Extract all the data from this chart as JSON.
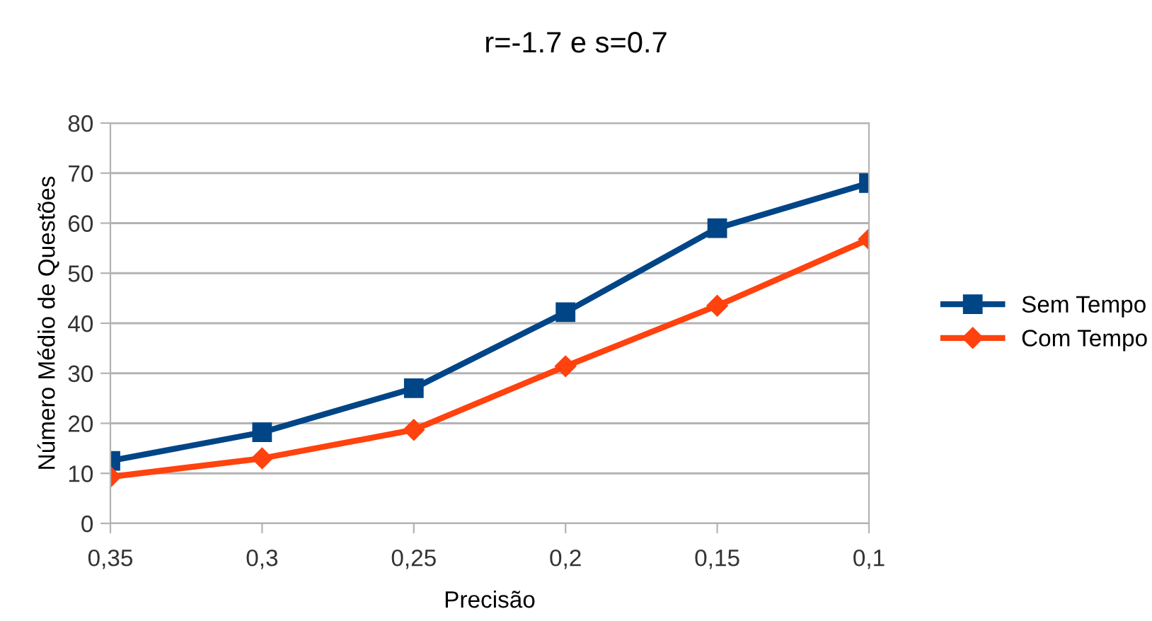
{
  "chart_data": {
    "type": "line",
    "title": "r=-1.7 e s=0.7",
    "xlabel": "Precisão",
    "ylabel": "Número Médio de Questões",
    "x": [
      0.35,
      0.3,
      0.25,
      0.2,
      0.15,
      0.1
    ],
    "series": [
      {
        "name": "Sem Tempo",
        "color": "#004586",
        "marker": "square",
        "values": [
          12.5,
          18.2,
          27,
          42.2,
          59,
          68
        ]
      },
      {
        "name": "Com Tempo",
        "color": "#ff420e",
        "marker": "diamond",
        "values": [
          9.3,
          13,
          18.7,
          31.4,
          43.5,
          56.8
        ]
      }
    ],
    "xlim": [
      0.35,
      0.1
    ],
    "xticks": [
      {
        "value": 0.35,
        "label": "0,35"
      },
      {
        "value": 0.3,
        "label": "0,3"
      },
      {
        "value": 0.25,
        "label": "0,25"
      },
      {
        "value": 0.2,
        "label": "0,2"
      },
      {
        "value": 0.15,
        "label": "0,15"
      },
      {
        "value": 0.1,
        "label": "0,1"
      }
    ],
    "ylim": [
      0,
      80
    ],
    "yticks": [
      0,
      10,
      20,
      30,
      40,
      50,
      60,
      70,
      80
    ],
    "grid": "y",
    "legend": "right",
    "line_style": "solid"
  }
}
